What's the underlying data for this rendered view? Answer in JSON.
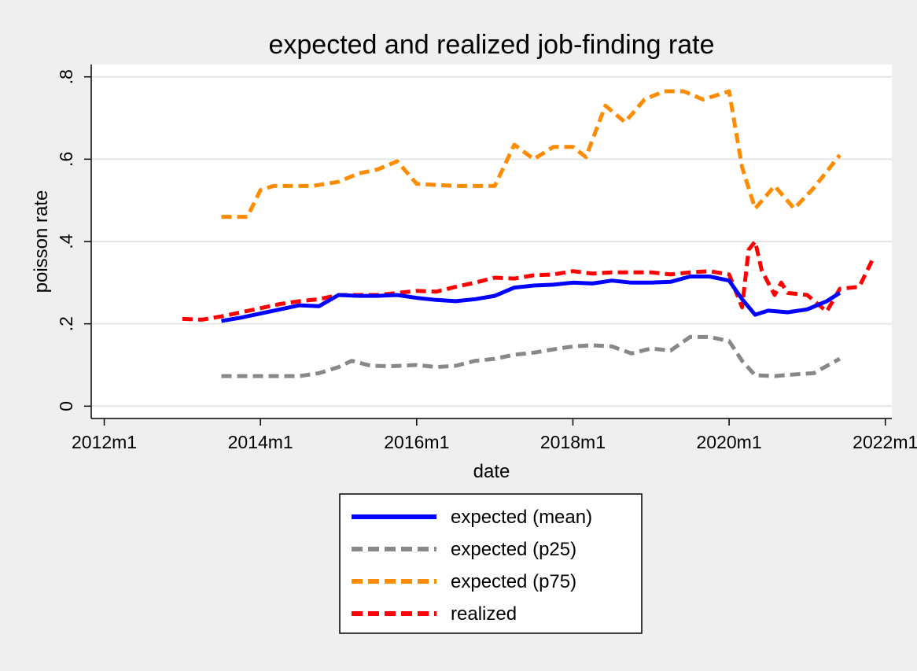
{
  "chart_data": {
    "type": "line",
    "title": "expected and realized job-finding rate",
    "xlabel": "date",
    "ylabel": "poisson rate",
    "xlim": [
      "2011m11",
      "2022m2"
    ],
    "ylim": [
      -0.03,
      0.83
    ],
    "x_ticks": [
      "2012m1",
      "2014m1",
      "2016m1",
      "2018m1",
      "2020m1",
      "2022m1"
    ],
    "y_ticks": [
      {
        "value": 0,
        "label": "0"
      },
      {
        "value": 0.2,
        "label": ".2"
      },
      {
        "value": 0.4,
        "label": ".4"
      },
      {
        "value": 0.6,
        "label": ".6"
      },
      {
        "value": 0.8,
        "label": ".8"
      }
    ],
    "grid": "horizontal",
    "legend_position": "bottom",
    "series": [
      {
        "name": "expected (mean)",
        "color": "#0000ff",
        "style": "solid",
        "points": [
          [
            "2013m7",
            0.207
          ],
          [
            "2013m10",
            0.215
          ],
          [
            "2014m1",
            0.225
          ],
          [
            "2014m4",
            0.235
          ],
          [
            "2014m7",
            0.245
          ],
          [
            "2014m10",
            0.243
          ],
          [
            "2015m1",
            0.27
          ],
          [
            "2015m4",
            0.268
          ],
          [
            "2015m7",
            0.268
          ],
          [
            "2015m10",
            0.27
          ],
          [
            "2016m1",
            0.263
          ],
          [
            "2016m4",
            0.258
          ],
          [
            "2016m7",
            0.255
          ],
          [
            "2016m10",
            0.26
          ],
          [
            "2017m1",
            0.268
          ],
          [
            "2017m4",
            0.288
          ],
          [
            "2017m7",
            0.293
          ],
          [
            "2017m10",
            0.295
          ],
          [
            "2018m1",
            0.3
          ],
          [
            "2018m4",
            0.298
          ],
          [
            "2018m7",
            0.305
          ],
          [
            "2018m10",
            0.3
          ],
          [
            "2019m1",
            0.3
          ],
          [
            "2019m4",
            0.302
          ],
          [
            "2019m7",
            0.315
          ],
          [
            "2019m10",
            0.315
          ],
          [
            "2020m1",
            0.305
          ],
          [
            "2020m3",
            0.26
          ],
          [
            "2020m5",
            0.222
          ],
          [
            "2020m7",
            0.232
          ],
          [
            "2020m10",
            0.228
          ],
          [
            "2021m1",
            0.235
          ],
          [
            "2021m4",
            0.255
          ],
          [
            "2021m6",
            0.275
          ]
        ]
      },
      {
        "name": "expected (p25)",
        "color": "#888888",
        "style": "dashed",
        "points": [
          [
            "2013m7",
            0.073
          ],
          [
            "2014m1",
            0.073
          ],
          [
            "2014m7",
            0.073
          ],
          [
            "2014m10",
            0.08
          ],
          [
            "2015m1",
            0.095
          ],
          [
            "2015m3",
            0.11
          ],
          [
            "2015m6",
            0.098
          ],
          [
            "2015m9",
            0.097
          ],
          [
            "2016m1",
            0.1
          ],
          [
            "2016m4",
            0.095
          ],
          [
            "2016m7",
            0.098
          ],
          [
            "2016m10",
            0.11
          ],
          [
            "2017m1",
            0.115
          ],
          [
            "2017m4",
            0.125
          ],
          [
            "2017m7",
            0.13
          ],
          [
            "2017m10",
            0.138
          ],
          [
            "2018m1",
            0.145
          ],
          [
            "2018m4",
            0.148
          ],
          [
            "2018m7",
            0.145
          ],
          [
            "2018m10",
            0.128
          ],
          [
            "2019m1",
            0.14
          ],
          [
            "2019m4",
            0.135
          ],
          [
            "2019m7",
            0.168
          ],
          [
            "2019m10",
            0.168
          ],
          [
            "2020m1",
            0.158
          ],
          [
            "2020m3",
            0.11
          ],
          [
            "2020m5",
            0.075
          ],
          [
            "2020m8",
            0.073
          ],
          [
            "2020m11",
            0.077
          ],
          [
            "2021m2",
            0.08
          ],
          [
            "2021m6",
            0.115
          ]
        ]
      },
      {
        "name": "expected (p75)",
        "color": "#ff8c00",
        "style": "dashed",
        "points": [
          [
            "2013m7",
            0.46
          ],
          [
            "2013m11",
            0.46
          ],
          [
            "2014m1",
            0.525
          ],
          [
            "2014m3",
            0.535
          ],
          [
            "2014m9",
            0.535
          ],
          [
            "2015m1",
            0.545
          ],
          [
            "2015m4",
            0.565
          ],
          [
            "2015m7",
            0.575
          ],
          [
            "2015m10",
            0.595
          ],
          [
            "2016m1",
            0.54
          ],
          [
            "2016m7",
            0.535
          ],
          [
            "2017m1",
            0.535
          ],
          [
            "2017m4",
            0.635
          ],
          [
            "2017m7",
            0.6
          ],
          [
            "2017m10",
            0.63
          ],
          [
            "2018m1",
            0.63
          ],
          [
            "2018m3",
            0.605
          ],
          [
            "2018m6",
            0.73
          ],
          [
            "2018m9",
            0.69
          ],
          [
            "2018m12",
            0.745
          ],
          [
            "2019m3",
            0.765
          ],
          [
            "2019m6",
            0.765
          ],
          [
            "2019m9",
            0.745
          ],
          [
            "2020m1",
            0.765
          ],
          [
            "2020m3",
            0.58
          ],
          [
            "2020m5",
            0.48
          ],
          [
            "2020m8",
            0.535
          ],
          [
            "2020m11",
            0.48
          ],
          [
            "2021m2",
            0.53
          ],
          [
            "2021m6",
            0.61
          ]
        ]
      },
      {
        "name": "realized",
        "color": "#ff0000",
        "style": "dashed",
        "points": [
          [
            "2013m1",
            0.212
          ],
          [
            "2013m4",
            0.21
          ],
          [
            "2013m7",
            0.218
          ],
          [
            "2013m10",
            0.228
          ],
          [
            "2014m1",
            0.238
          ],
          [
            "2014m4",
            0.248
          ],
          [
            "2014m7",
            0.255
          ],
          [
            "2014m10",
            0.26
          ],
          [
            "2015m1",
            0.27
          ],
          [
            "2015m4",
            0.27
          ],
          [
            "2015m7",
            0.27
          ],
          [
            "2015m10",
            0.275
          ],
          [
            "2016m1",
            0.28
          ],
          [
            "2016m4",
            0.278
          ],
          [
            "2016m7",
            0.29
          ],
          [
            "2016m10",
            0.3
          ],
          [
            "2017m1",
            0.312
          ],
          [
            "2017m4",
            0.31
          ],
          [
            "2017m7",
            0.318
          ],
          [
            "2017m10",
            0.32
          ],
          [
            "2018m1",
            0.328
          ],
          [
            "2018m4",
            0.322
          ],
          [
            "2018m7",
            0.325
          ],
          [
            "2018m10",
            0.325
          ],
          [
            "2019m1",
            0.325
          ],
          [
            "2019m4",
            0.32
          ],
          [
            "2019m7",
            0.325
          ],
          [
            "2019m10",
            0.328
          ],
          [
            "2020m1",
            0.32
          ],
          [
            "2020m2",
            0.28
          ],
          [
            "2020m3",
            0.24
          ],
          [
            "2020m4",
            0.38
          ],
          [
            "2020m5",
            0.4
          ],
          [
            "2020m6",
            0.33
          ],
          [
            "2020m7",
            0.3
          ],
          [
            "2020m8",
            0.27
          ],
          [
            "2020m9",
            0.3
          ],
          [
            "2020m10",
            0.275
          ],
          [
            "2021m1",
            0.27
          ],
          [
            "2021m4",
            0.23
          ],
          [
            "2021m6",
            0.285
          ],
          [
            "2021m9",
            0.29
          ],
          [
            "2021m11",
            0.355
          ]
        ]
      }
    ]
  }
}
